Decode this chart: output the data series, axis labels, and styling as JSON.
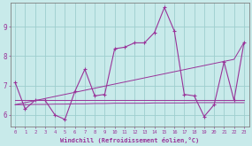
{
  "xlabel": "Windchill (Refroidissement éolien,°C)",
  "bg_color": "#c8eaea",
  "grid_color": "#9ecece",
  "line_color": "#993399",
  "x_data": [
    0,
    1,
    2,
    3,
    4,
    5,
    6,
    7,
    8,
    9,
    10,
    11,
    12,
    13,
    14,
    15,
    16,
    17,
    18,
    19,
    20,
    21,
    22,
    23
  ],
  "curve_y": [
    7.1,
    6.2,
    6.5,
    6.5,
    6.0,
    5.85,
    6.8,
    7.55,
    6.65,
    6.7,
    8.25,
    8.3,
    8.45,
    8.45,
    8.8,
    9.65,
    8.85,
    6.7,
    6.65,
    5.95,
    6.35,
    7.8,
    6.5,
    8.45
  ],
  "linear_y": [
    6.35,
    6.42,
    6.49,
    6.56,
    6.63,
    6.7,
    6.77,
    6.84,
    6.91,
    6.98,
    7.05,
    7.12,
    7.19,
    7.26,
    7.33,
    7.4,
    7.47,
    7.54,
    7.61,
    7.68,
    7.75,
    7.82,
    7.89,
    8.46
  ],
  "flat_y": [
    6.35,
    6.35,
    6.36,
    6.36,
    6.37,
    6.37,
    6.38,
    6.38,
    6.39,
    6.39,
    6.4,
    6.4,
    6.4,
    6.4,
    6.41,
    6.41,
    6.41,
    6.41,
    6.42,
    6.42,
    6.42,
    6.42,
    6.42,
    6.42
  ],
  "flat2_y": [
    6.5,
    6.5,
    6.5,
    6.5,
    6.5,
    6.5,
    6.5,
    6.5,
    6.5,
    6.5,
    6.5,
    6.5,
    6.5,
    6.5,
    6.5,
    6.5,
    6.5,
    6.5,
    6.5,
    6.5,
    6.5,
    6.5,
    6.5,
    6.5
  ],
  "ylim": [
    5.6,
    9.8
  ],
  "yticks": [
    6,
    7,
    8,
    9
  ],
  "xlim": [
    -0.5,
    23.5
  ]
}
